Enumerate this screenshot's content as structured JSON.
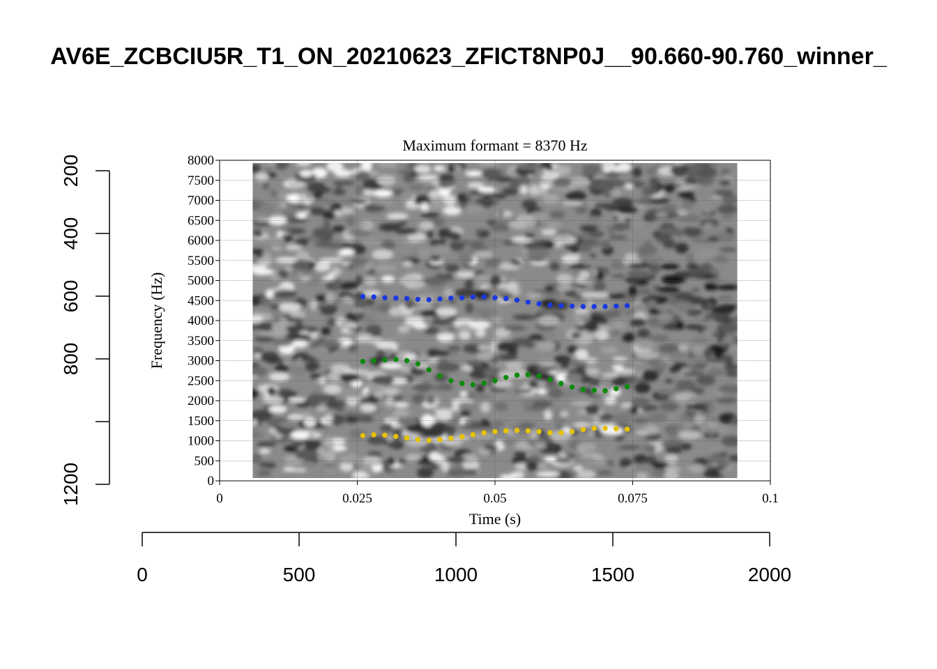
{
  "figure": {
    "title": "AV6E_ZCBCIU5R_T1_ON_20210623_ZFICT8NP0J__90.660-90.760_winner_"
  },
  "chart_data": [
    {
      "type": "scatter",
      "role": "outer-frame",
      "x_ticks": [
        "0",
        "500",
        "1000",
        "1500",
        "2000"
      ],
      "xlim": [
        0,
        2000
      ],
      "y_ticks": [
        "200",
        "400",
        "600",
        "800",
        "1200"
      ],
      "ylim": [
        1200,
        200
      ]
    },
    {
      "type": "scatter",
      "role": "formant-plot",
      "title": "Maximum formant  =  8370 Hz",
      "xlabel": "Time (s)",
      "ylabel": "Frequency (Hz)",
      "xlim": [
        0,
        0.1
      ],
      "ylim": [
        0,
        8000
      ],
      "x_ticks": [
        "0",
        "0.025",
        "0.05",
        "0.075",
        "0.1"
      ],
      "y_ticks": [
        "0",
        "500",
        "1000",
        "1500",
        "2000",
        "2500",
        "3000",
        "3500",
        "4000",
        "4500",
        "5000",
        "5500",
        "6000",
        "6500",
        "7000",
        "7500",
        "8000"
      ],
      "spectrogram_time_range": [
        0.006,
        0.094
      ],
      "grid": true,
      "x": [
        0.026,
        0.028,
        0.03,
        0.032,
        0.034,
        0.036,
        0.038,
        0.04,
        0.042,
        0.044,
        0.046,
        0.048,
        0.05,
        0.052,
        0.054,
        0.056,
        0.058,
        0.06,
        0.062,
        0.064,
        0.066,
        0.068,
        0.07,
        0.072,
        0.074
      ],
      "series": [
        {
          "color": "#1a3ae0",
          "values": [
            4600,
            4590,
            4570,
            4560,
            4550,
            4530,
            4520,
            4540,
            4560,
            4570,
            4590,
            4590,
            4570,
            4550,
            4510,
            4460,
            4420,
            4390,
            4370,
            4360,
            4350,
            4350,
            4350,
            4360,
            4370
          ]
        },
        {
          "color": "#0d8a0d",
          "values": [
            2980,
            3000,
            3020,
            3030,
            3000,
            2920,
            2770,
            2620,
            2500,
            2430,
            2400,
            2440,
            2500,
            2580,
            2640,
            2650,
            2620,
            2530,
            2430,
            2340,
            2280,
            2260,
            2250,
            2300,
            2350
          ]
        },
        {
          "color": "#e6c200",
          "values": [
            1130,
            1150,
            1140,
            1110,
            1070,
            1030,
            1010,
            1030,
            1060,
            1100,
            1150,
            1200,
            1230,
            1250,
            1260,
            1250,
            1230,
            1200,
            1200,
            1230,
            1280,
            1310,
            1310,
            1300,
            1290
          ]
        }
      ]
    }
  ]
}
